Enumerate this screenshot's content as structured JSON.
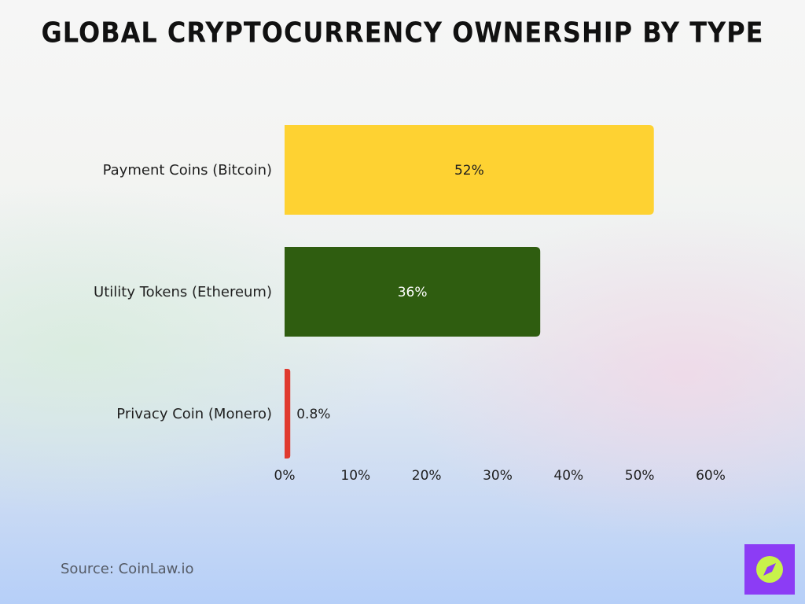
{
  "chart_data": {
    "type": "bar",
    "orientation": "horizontal",
    "title": "Global Cryptocurrency Ownership by Type",
    "categories": [
      "Payment Coins (Bitcoin)",
      "Utility Tokens (Ethereum)",
      "Privacy Coin (Monero)"
    ],
    "values": [
      52,
      36,
      0.8
    ],
    "data_labels": [
      "52%",
      "36%",
      "0.8%"
    ],
    "colors": [
      "#fed232",
      "#2f5d10",
      "#e03a2f"
    ],
    "label_colors": [
      "#1f1f1f",
      "#ffffff",
      "#1f1f1f"
    ],
    "xlim": [
      0,
      60
    ],
    "xticks": [
      0,
      10,
      20,
      30,
      40,
      50,
      60
    ],
    "xtick_labels": [
      "0%",
      "10%",
      "20%",
      "30%",
      "40%",
      "50%",
      "60%"
    ],
    "grid": false,
    "legend": "none"
  },
  "source": "Source: CoinLaw.io",
  "logo_icon": "compass-logo-icon",
  "logo_color": "#8c3cf5",
  "logo_accent": "#c8f24a"
}
